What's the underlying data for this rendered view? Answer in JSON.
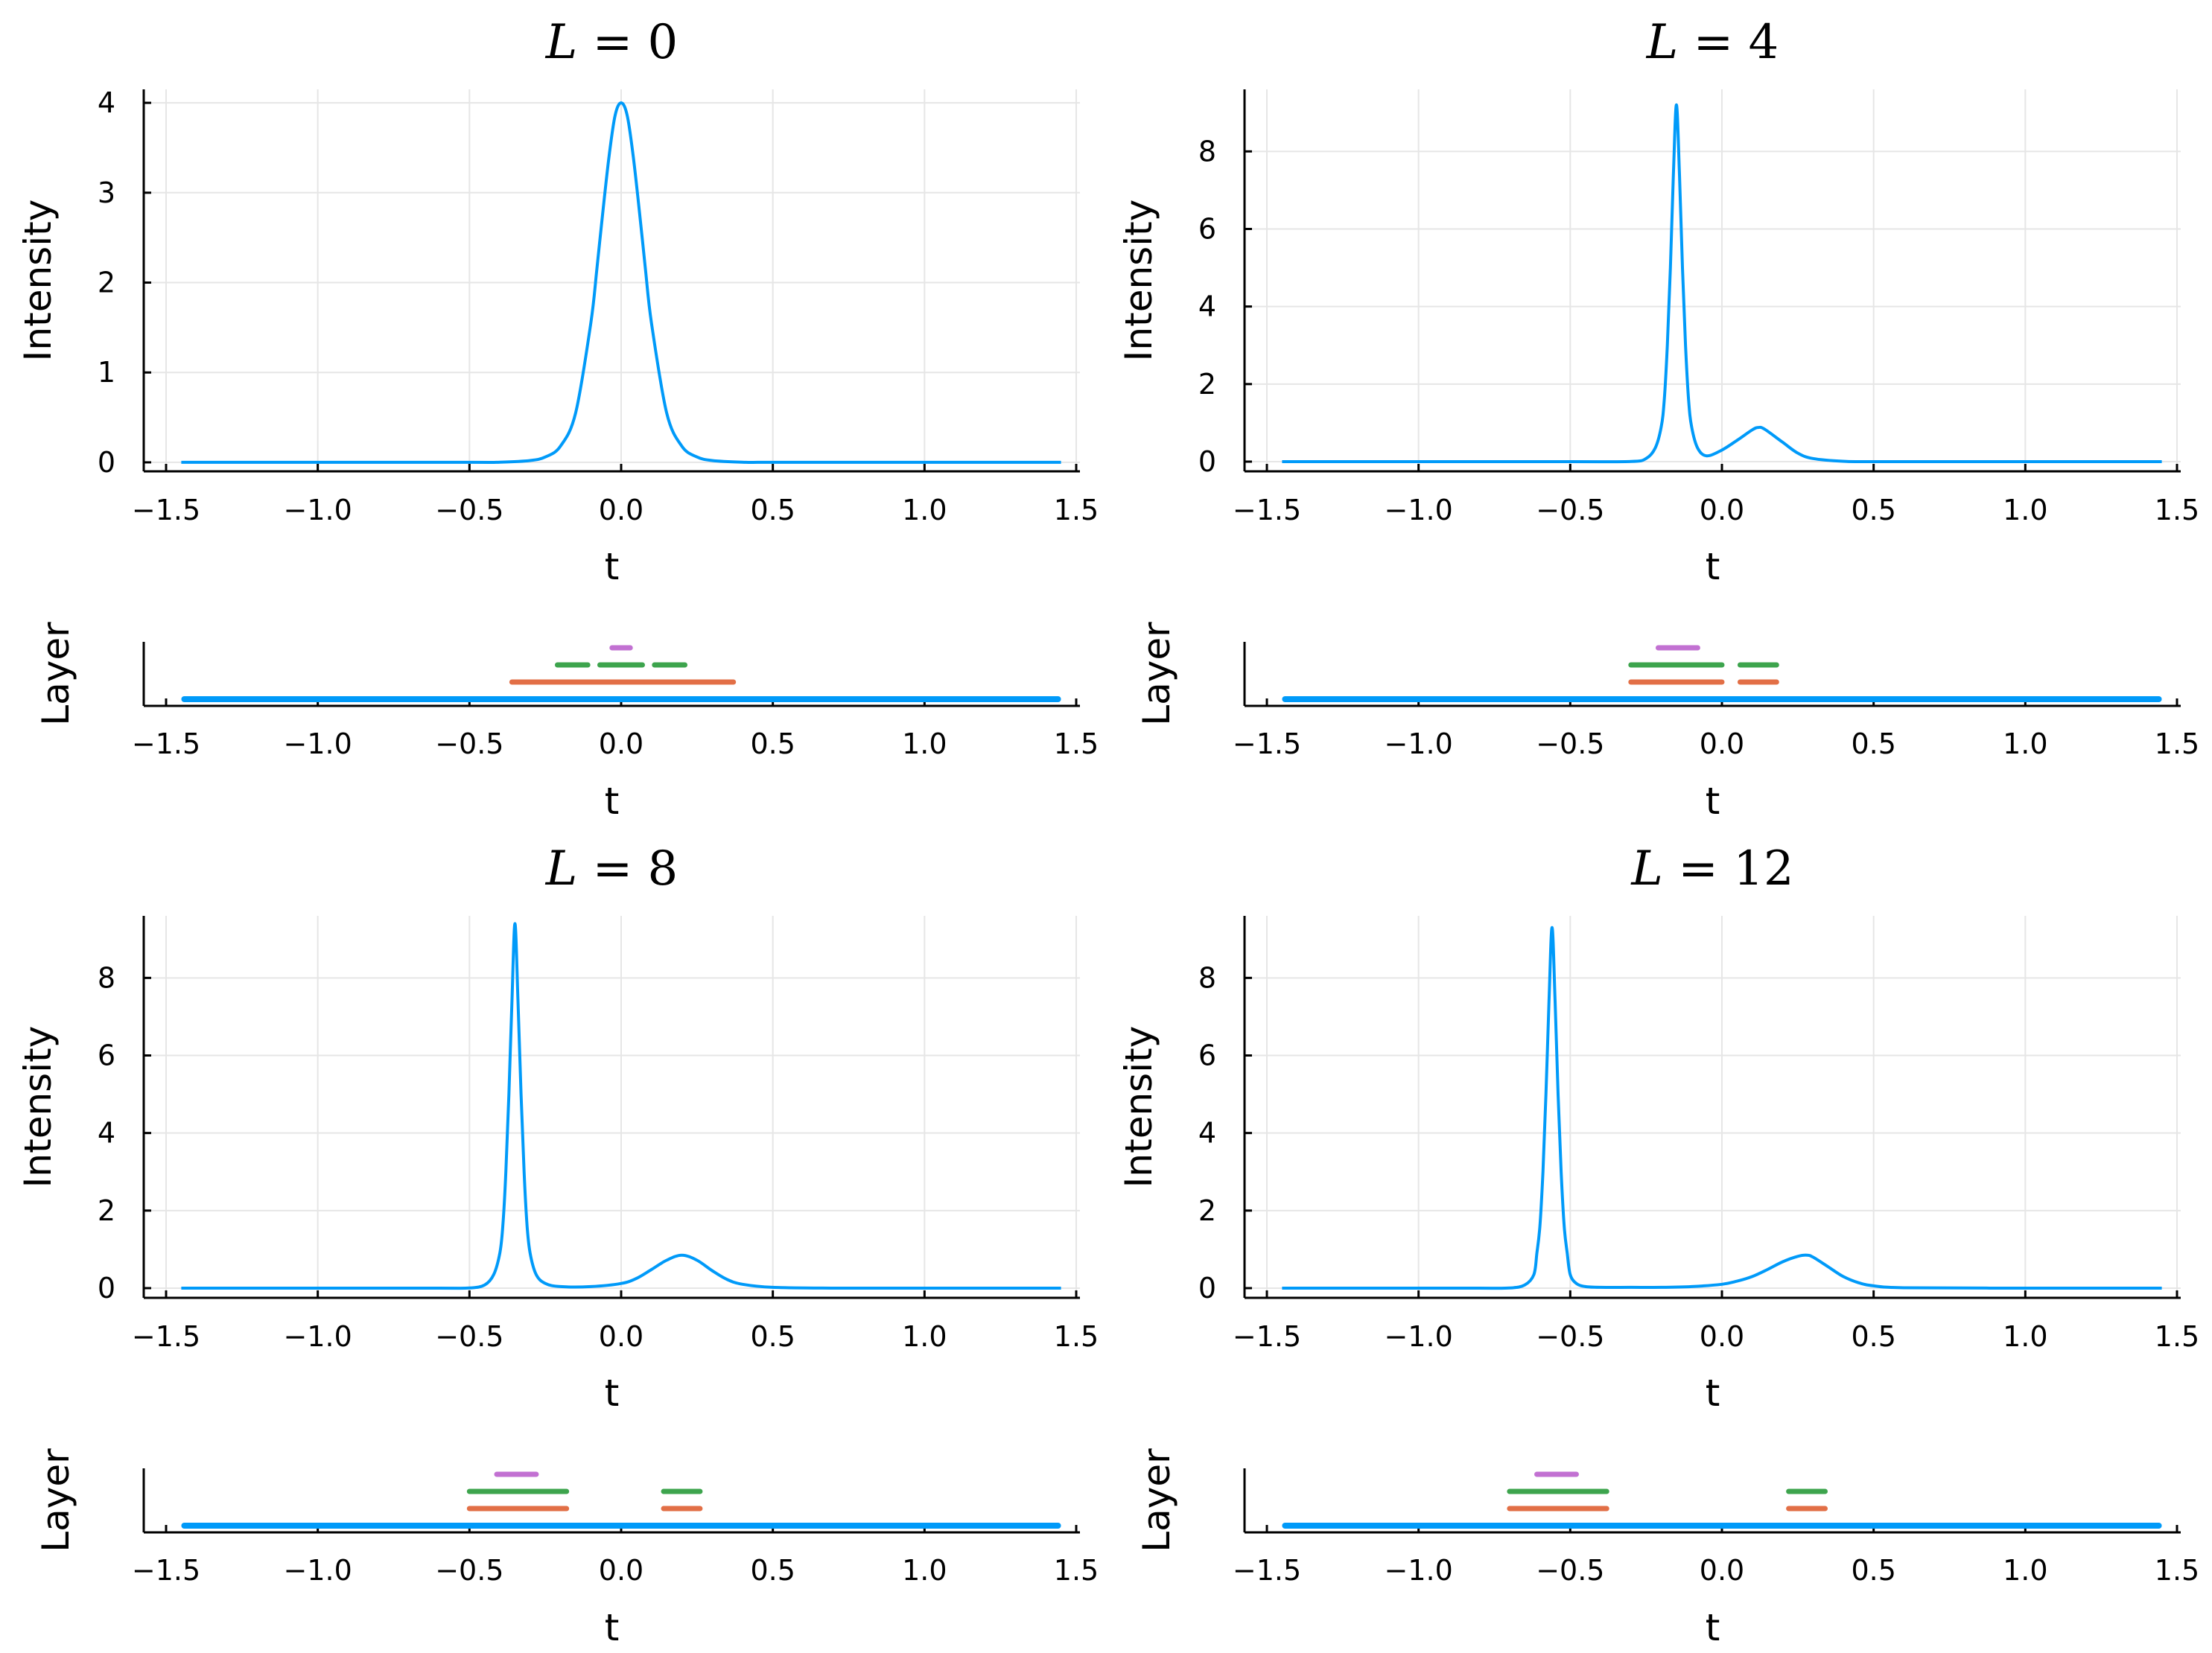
{
  "colors": {
    "blue": "#009af9",
    "orange": "#e26f46",
    "green": "#3da44d",
    "purple": "#c271d2"
  },
  "chart_data": [
    {
      "type": "line",
      "title": "L = 0",
      "title_var": "L",
      "title_value": "0",
      "xlabel": "t",
      "ylabel": "Intensity",
      "xlim": [
        -1.5,
        1.5
      ],
      "ylim": [
        -0.1,
        4.15
      ],
      "xticks": [
        "−1.5",
        "−1.0",
        "−0.5",
        "0.0",
        "0.5",
        "1.0",
        "1.5"
      ],
      "yticks": [
        "0",
        "1",
        "2",
        "3",
        "4"
      ],
      "series": [
        {
          "name": "intensity",
          "color": "#009af9",
          "x": [
            -1.45,
            -1.0,
            -0.5,
            -0.4,
            -0.3,
            -0.25,
            -0.2,
            -0.15,
            -0.1,
            -0.08,
            -0.06,
            -0.04,
            -0.02,
            0.0,
            0.02,
            0.04,
            0.06,
            0.08,
            0.1,
            0.15,
            0.2,
            0.25,
            0.3,
            0.4,
            0.5,
            1.0,
            1.45
          ],
          "y": [
            0,
            0,
            0,
            0.002,
            0.02,
            0.06,
            0.18,
            0.55,
            1.55,
            2.15,
            2.8,
            3.4,
            3.86,
            4.0,
            3.86,
            3.4,
            2.8,
            2.15,
            1.55,
            0.55,
            0.18,
            0.06,
            0.02,
            0.002,
            0,
            0,
            0
          ]
        }
      ],
      "layer_panel": {
        "xlabel": "t",
        "ylabel": "Layer",
        "xlim": [
          -1.5,
          1.5
        ],
        "xticks": [
          "−1.5",
          "−1.0",
          "−0.5",
          "0.0",
          "0.5",
          "1.0",
          "1.5"
        ],
        "segments": [
          {
            "layer": 0,
            "color": "#009af9",
            "x0": -1.44,
            "x1": 1.44
          },
          {
            "layer": 1,
            "color": "#e26f46",
            "x0": -0.36,
            "x1": -0.09
          },
          {
            "layer": 1,
            "color": "#e26f46",
            "x0": -0.09,
            "x1": 0.08
          },
          {
            "layer": 1,
            "color": "#e26f46",
            "x0": 0.08,
            "x1": 0.37
          },
          {
            "layer": 2,
            "color": "#3da44d",
            "x0": -0.21,
            "x1": -0.11
          },
          {
            "layer": 2,
            "color": "#3da44d",
            "x0": -0.07,
            "x1": 0.07
          },
          {
            "layer": 2,
            "color": "#3da44d",
            "x0": 0.11,
            "x1": 0.21
          },
          {
            "layer": 3,
            "color": "#c271d2",
            "x0": -0.03,
            "x1": 0.03
          }
        ]
      }
    },
    {
      "type": "line",
      "title": "L = 4",
      "title_var": "L",
      "title_value": "4",
      "xlabel": "t",
      "ylabel": "Intensity",
      "xlim": [
        -1.5,
        1.5
      ],
      "ylim": [
        -0.25,
        9.6
      ],
      "xticks": [
        "−1.5",
        "−1.0",
        "−0.5",
        "0.0",
        "0.5",
        "1.0",
        "1.5"
      ],
      "yticks": [
        "0",
        "2",
        "4",
        "6",
        "8"
      ],
      "series": [
        {
          "name": "intensity",
          "color": "#009af9",
          "x": [
            -1.45,
            -1.0,
            -0.5,
            -0.3,
            -0.25,
            -0.22,
            -0.2,
            -0.19,
            -0.18,
            -0.17,
            -0.16,
            -0.15,
            -0.14,
            -0.13,
            -0.12,
            -0.11,
            -0.1,
            -0.08,
            -0.05,
            0.0,
            0.05,
            0.1,
            0.12,
            0.14,
            0.2,
            0.25,
            0.3,
            0.4,
            0.5,
            1.0,
            1.45
          ],
          "y": [
            0,
            0,
            0,
            0.003,
            0.08,
            0.35,
            0.9,
            1.6,
            3.0,
            5.0,
            7.4,
            9.2,
            7.4,
            5.0,
            3.0,
            1.6,
            0.9,
            0.35,
            0.15,
            0.3,
            0.55,
            0.82,
            0.88,
            0.84,
            0.5,
            0.22,
            0.08,
            0.01,
            0,
            0,
            0
          ]
        }
      ],
      "layer_panel": {
        "xlabel": "t",
        "ylabel": "Layer",
        "xlim": [
          -1.5,
          1.5
        ],
        "xticks": [
          "−1.5",
          "−1.0",
          "−0.5",
          "0.0",
          "0.5",
          "1.0",
          "1.5"
        ],
        "segments": [
          {
            "layer": 0,
            "color": "#009af9",
            "x0": -1.44,
            "x1": 1.44
          },
          {
            "layer": 1,
            "color": "#e26f46",
            "x0": -0.3,
            "x1": 0.0
          },
          {
            "layer": 1,
            "color": "#e26f46",
            "x0": 0.06,
            "x1": 0.18
          },
          {
            "layer": 2,
            "color": "#3da44d",
            "x0": -0.3,
            "x1": 0.0
          },
          {
            "layer": 2,
            "color": "#3da44d",
            "x0": 0.06,
            "x1": 0.18
          },
          {
            "layer": 3,
            "color": "#c271d2",
            "x0": -0.21,
            "x1": -0.08
          }
        ]
      }
    },
    {
      "type": "line",
      "title": "L = 8",
      "title_var": "L",
      "title_value": "8",
      "xlabel": "t",
      "ylabel": "Intensity",
      "xlim": [
        -1.5,
        1.5
      ],
      "ylim": [
        -0.25,
        9.6
      ],
      "xticks": [
        "−1.5",
        "−1.0",
        "−0.5",
        "0.0",
        "0.5",
        "1.0",
        "1.5"
      ],
      "yticks": [
        "0",
        "2",
        "4",
        "6",
        "8"
      ],
      "series": [
        {
          "name": "intensity",
          "color": "#009af9",
          "x": [
            -1.45,
            -1.0,
            -0.6,
            -0.5,
            -0.45,
            -0.42,
            -0.4,
            -0.39,
            -0.38,
            -0.37,
            -0.36,
            -0.35,
            -0.34,
            -0.33,
            -0.32,
            -0.31,
            -0.3,
            -0.28,
            -0.25,
            -0.2,
            -0.1,
            0.0,
            0.05,
            0.1,
            0.15,
            0.2,
            0.25,
            0.3,
            0.35,
            0.4,
            0.5,
            0.7,
            1.0,
            1.45
          ],
          "y": [
            0,
            0,
            0,
            0.003,
            0.08,
            0.35,
            0.9,
            1.6,
            3.0,
            5.0,
            7.4,
            9.4,
            7.4,
            5.0,
            3.0,
            1.6,
            0.9,
            0.35,
            0.12,
            0.04,
            0.04,
            0.12,
            0.25,
            0.48,
            0.72,
            0.85,
            0.72,
            0.45,
            0.22,
            0.1,
            0.02,
            0,
            0,
            0
          ]
        }
      ],
      "layer_panel": {
        "xlabel": "t",
        "ylabel": "Layer",
        "xlim": [
          -1.5,
          1.5
        ],
        "xticks": [
          "−1.5",
          "−1.0",
          "−0.5",
          "0.0",
          "0.5",
          "1.0",
          "1.5"
        ],
        "segments": [
          {
            "layer": 0,
            "color": "#009af9",
            "x0": -1.44,
            "x1": 1.44
          },
          {
            "layer": 1,
            "color": "#e26f46",
            "x0": -0.5,
            "x1": -0.18
          },
          {
            "layer": 1,
            "color": "#e26f46",
            "x0": 0.14,
            "x1": 0.26
          },
          {
            "layer": 2,
            "color": "#3da44d",
            "x0": -0.5,
            "x1": -0.18
          },
          {
            "layer": 2,
            "color": "#3da44d",
            "x0": 0.14,
            "x1": 0.26
          },
          {
            "layer": 3,
            "color": "#c271d2",
            "x0": -0.41,
            "x1": -0.28
          }
        ]
      }
    },
    {
      "type": "line",
      "title": "L = 12",
      "title_var": "L",
      "title_value": "12",
      "xlabel": "t",
      "ylabel": "Intensity",
      "xlim": [
        -1.5,
        1.5
      ],
      "ylim": [
        -0.25,
        9.6
      ],
      "xticks": [
        "−1.5",
        "−1.0",
        "−0.5",
        "0.0",
        "0.5",
        "1.0",
        "1.5"
      ],
      "yticks": [
        "0",
        "2",
        "4",
        "6",
        "8"
      ],
      "series": [
        {
          "name": "intensity",
          "color": "#009af9",
          "x": [
            -1.45,
            -1.0,
            -0.8,
            -0.7,
            -0.65,
            -0.62,
            -0.61,
            -0.6,
            -0.59,
            -0.58,
            -0.57,
            -0.56,
            -0.55,
            -0.54,
            -0.53,
            -0.52,
            -0.51,
            -0.5,
            -0.48,
            -0.45,
            -0.4,
            -0.3,
            -0.2,
            -0.1,
            0.0,
            0.05,
            0.1,
            0.15,
            0.2,
            0.25,
            0.28,
            0.3,
            0.35,
            0.4,
            0.45,
            0.5,
            0.6,
            1.0,
            1.45
          ],
          "y": [
            0,
            0,
            0,
            0.003,
            0.08,
            0.35,
            0.9,
            1.6,
            3.0,
            5.0,
            7.4,
            9.3,
            7.4,
            5.0,
            3.0,
            1.6,
            0.9,
            0.35,
            0.12,
            0.04,
            0.02,
            0.02,
            0.02,
            0.04,
            0.1,
            0.18,
            0.3,
            0.48,
            0.68,
            0.82,
            0.85,
            0.8,
            0.55,
            0.3,
            0.14,
            0.06,
            0.01,
            0,
            0
          ]
        }
      ],
      "layer_panel": {
        "xlabel": "t",
        "ylabel": "Layer",
        "xlim": [
          -1.5,
          1.5
        ],
        "xticks": [
          "−1.5",
          "−1.0",
          "−0.5",
          "0.0",
          "0.5",
          "1.0",
          "1.5"
        ],
        "segments": [
          {
            "layer": 0,
            "color": "#009af9",
            "x0": -1.44,
            "x1": 1.44
          },
          {
            "layer": 1,
            "color": "#e26f46",
            "x0": -0.7,
            "x1": -0.38
          },
          {
            "layer": 1,
            "color": "#e26f46",
            "x0": 0.22,
            "x1": 0.34
          },
          {
            "layer": 2,
            "color": "#3da44d",
            "x0": -0.7,
            "x1": -0.38
          },
          {
            "layer": 2,
            "color": "#3da44d",
            "x0": 0.22,
            "x1": 0.34
          },
          {
            "layer": 3,
            "color": "#c271d2",
            "x0": -0.61,
            "x1": -0.48
          }
        ]
      }
    }
  ]
}
